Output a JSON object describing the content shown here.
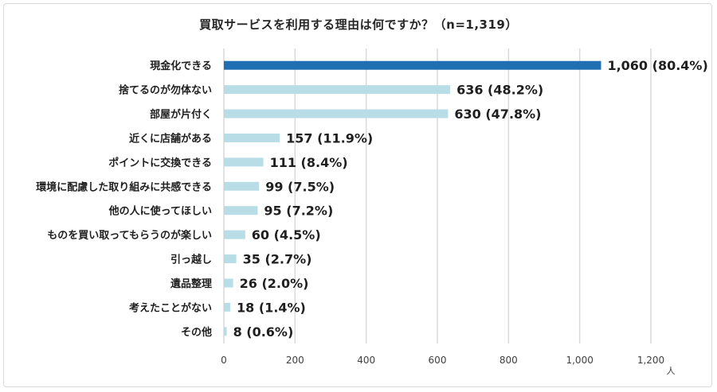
{
  "chart_data": {
    "type": "bar",
    "orientation": "horizontal",
    "title": "買取サービスを利用する理由は何ですか？（n=1,319）",
    "categories": [
      "現金化できる",
      "捨てるのが勿体ない",
      "部屋が片付く",
      "近くに店舗がある",
      "ポイントに交換できる",
      "環境に配慮した取り組みに共感できる",
      "他の人に使ってほしい",
      "ものを買い取ってもらうのが楽しい",
      "引っ越し",
      "遺品整理",
      "考えたことがない",
      "その他"
    ],
    "values": [
      1060,
      636,
      630,
      157,
      111,
      99,
      95,
      60,
      35,
      26,
      18,
      8
    ],
    "data_labels": [
      "1,060 (80.4%)",
      "636 (48.2%)",
      "630 (47.8%)",
      "157 (11.9%)",
      "111 (8.4%)",
      "99 (7.5%)",
      "95 (7.2%)",
      "60 (4.5%)",
      "35 (2.7%)",
      "26 (2.0%)",
      "18 (1.4%)",
      "8 (0.6%)"
    ],
    "xlim": [
      0,
      1200
    ],
    "xticks": [
      "0",
      "200",
      "400",
      "600",
      "800",
      "1,000",
      "1,200"
    ],
    "xunit": "人",
    "grid": true,
    "legend": "none",
    "colors": {
      "highlight": "#1f6fb2",
      "bar": "#b9dde6",
      "grid": "#d9d9d9"
    }
  }
}
